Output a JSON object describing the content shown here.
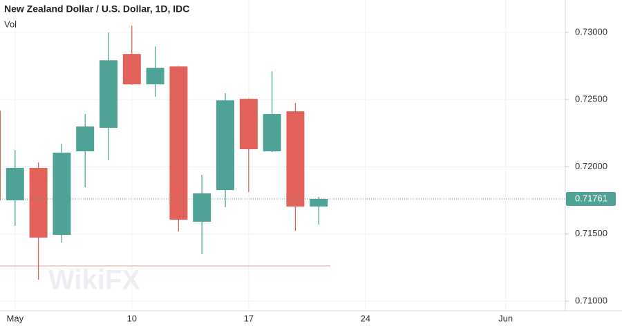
{
  "chart_data": {
    "type": "candlestick",
    "title": "New Zealand Dollar / U.S. Dollar, 1D, IDC",
    "subtitle": "Vol",
    "watermark": "WikiFX",
    "categories": [
      null,
      "May",
      null,
      null,
      null,
      null,
      "10",
      null,
      null,
      null,
      null,
      "17",
      null,
      null,
      null,
      null,
      "24",
      null,
      null,
      null,
      null,
      null,
      "Jun",
      null,
      null
    ],
    "open": [
      0.72418,
      0.7175,
      0.71992,
      0.71493,
      0.72115,
      0.7229,
      0.7284,
      0.72614,
      0.72747,
      0.71591,
      0.71827,
      0.72506,
      0.72115,
      0.72413,
      0.71704,
      null,
      null,
      null,
      null,
      null,
      null,
      null,
      null,
      null,
      null
    ],
    "high": [
      0.7242,
      0.72125,
      0.72033,
      0.72172,
      0.72393,
      0.72999,
      0.7305,
      0.72896,
      0.7275,
      0.7194,
      0.72547,
      0.7251,
      0.72711,
      0.72475,
      0.71776,
      null,
      null,
      null,
      null,
      null,
      null,
      null,
      null,
      null,
      null
    ],
    "low": [
      0.717,
      0.7156,
      0.71159,
      0.71437,
      0.71848,
      0.72048,
      0.7261,
      0.72521,
      0.71519,
      0.71349,
      0.71699,
      0.71812,
      0.7211,
      0.71524,
      0.7157,
      null,
      null,
      null,
      null,
      null,
      null,
      null,
      null,
      null,
      null
    ],
    "close": [
      0.7175,
      0.71992,
      0.71473,
      0.72105,
      0.723,
      0.72793,
      0.72614,
      0.72737,
      0.71606,
      0.71802,
      0.72495,
      0.72131,
      0.72393,
      0.71704,
      0.71761,
      null,
      null,
      null,
      null,
      null,
      null,
      null,
      null,
      null,
      null
    ],
    "up_color": "#4fa396",
    "down_color": "#e2615a",
    "ylim": [
      0.70938,
      0.73242
    ],
    "yticks": [
      {
        "value": 0.71,
        "label": "0.71000"
      },
      {
        "value": 0.715,
        "label": "0.71500"
      },
      {
        "value": 0.72,
        "label": "0.72000"
      },
      {
        "value": 0.725,
        "label": "0.72500"
      },
      {
        "value": 0.73,
        "label": "0.73000"
      }
    ],
    "last_price": {
      "value": 0.71761,
      "label": "0.71761"
    },
    "grid": true
  }
}
